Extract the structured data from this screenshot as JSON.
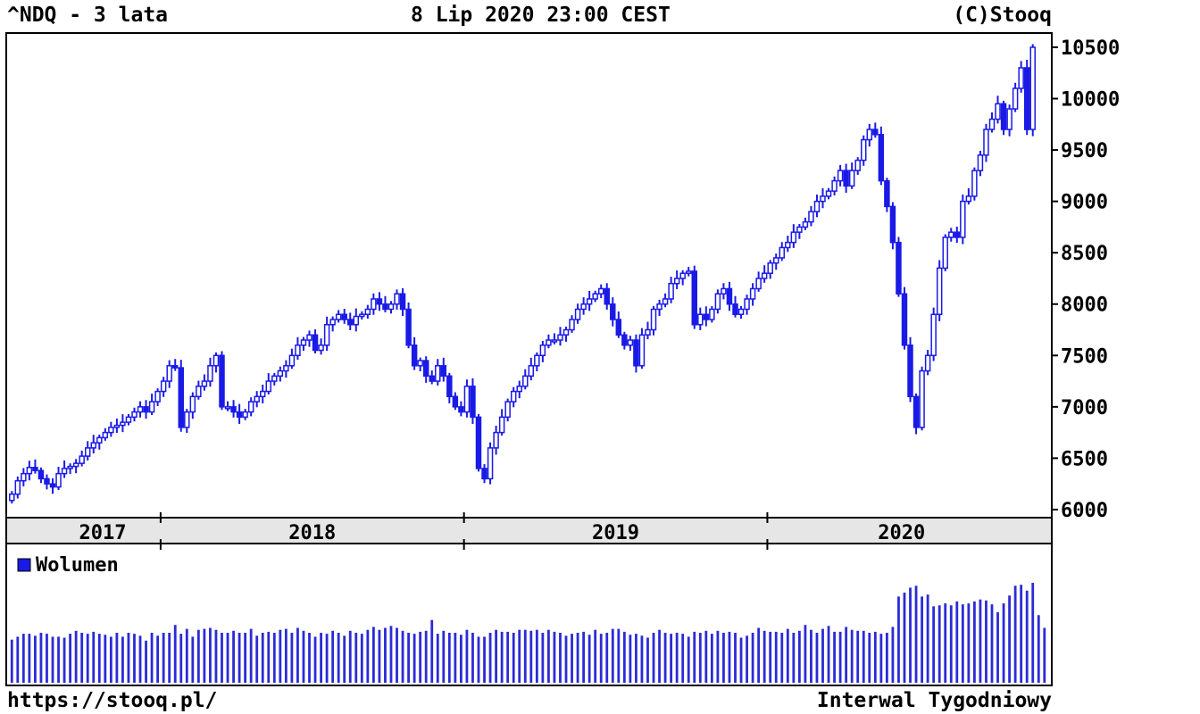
{
  "header": {
    "symbol_title": "^NDQ - 3 lata",
    "timestamp": "8 Lip 2020 23:00 CEST",
    "copyright": "(C)Stooq"
  },
  "footer": {
    "url": "https://stooq.pl/",
    "interval": "Interwal Tygodniowy"
  },
  "colors": {
    "candle": "#1a1ae6",
    "volume": "#2b2bd6",
    "axis_band": "#e6e6e6"
  },
  "chart_data": [
    {
      "type": "candlestick",
      "title": "^NDQ - 3 lata",
      "y_ticks": [
        6000,
        6500,
        7000,
        7500,
        8000,
        8500,
        9000,
        9500,
        10000,
        10500
      ],
      "ylim": [
        5930,
        10630
      ],
      "x_year_labels": [
        "2017",
        "2018",
        "2019",
        "2020"
      ],
      "x_year_boundaries": [
        "2018",
        "2019",
        "2020"
      ],
      "grid": false,
      "approx_weekly_close": [
        6150,
        6280,
        6350,
        6410,
        6380,
        6300,
        6250,
        6220,
        6350,
        6400,
        6420,
        6450,
        6520,
        6600,
        6650,
        6700,
        6750,
        6800,
        6820,
        6850,
        6900,
        6950,
        7000,
        6950,
        7050,
        7150,
        7250,
        7400,
        7380,
        6800,
        6950,
        7100,
        7200,
        7250,
        7400,
        7500,
        7000,
        7000,
        6950,
        6900,
        6950,
        7050,
        7100,
        7150,
        7250,
        7300,
        7350,
        7400,
        7500,
        7600,
        7650,
        7700,
        7550,
        7600,
        7800,
        7850,
        7900,
        7850,
        7800,
        7880,
        7900,
        7950,
        8050,
        8000,
        7950,
        8000,
        8100,
        7950,
        7600,
        7400,
        7450,
        7300,
        7250,
        7400,
        7300,
        7100,
        7000,
        6950,
        7200,
        6900,
        6400,
        6300,
        6600,
        6750,
        6900,
        7050,
        7150,
        7200,
        7300,
        7400,
        7500,
        7600,
        7650,
        7650,
        7700,
        7750,
        7850,
        7950,
        8000,
        8050,
        8100,
        8150,
        8000,
        7850,
        7700,
        7600,
        7650,
        7400,
        7700,
        7750,
        7950,
        8000,
        8050,
        8200,
        8250,
        8300,
        8320,
        7800,
        7900,
        7850,
        7950,
        8100,
        8150,
        8000,
        7900,
        7950,
        8050,
        8150,
        8250,
        8300,
        8400,
        8450,
        8550,
        8600,
        8700,
        8750,
        8800,
        8900,
        9000,
        9050,
        9100,
        9200,
        9300,
        9150,
        9300,
        9400,
        9600,
        9700,
        9650,
        9200,
        8950,
        8600,
        8100,
        7600,
        7100,
        6800,
        7350,
        7500,
        7900,
        8350,
        8650,
        8700,
        8650,
        9000,
        9050,
        9300,
        9450,
        9700,
        9800,
        9950,
        9700,
        9900,
        10100,
        10300,
        9700,
        10500
      ],
      "volume_series": {
        "name": "Wolumen",
        "approx_relative": [
          0.44,
          0.47,
          0.5,
          0.5,
          0.48,
          0.51,
          0.5,
          0.47,
          0.47,
          0.46,
          0.5,
          0.53,
          0.51,
          0.5,
          0.52,
          0.5,
          0.49,
          0.47,
          0.51,
          0.47,
          0.51,
          0.5,
          0.48,
          0.43,
          0.51,
          0.48,
          0.51,
          0.51,
          0.59,
          0.5,
          0.55,
          0.47,
          0.54,
          0.55,
          0.56,
          0.54,
          0.51,
          0.51,
          0.53,
          0.51,
          0.51,
          0.55,
          0.48,
          0.51,
          0.52,
          0.51,
          0.54,
          0.55,
          0.51,
          0.56,
          0.53,
          0.51,
          0.47,
          0.51,
          0.5,
          0.53,
          0.51,
          0.48,
          0.53,
          0.51,
          0.5,
          0.54,
          0.57,
          0.54,
          0.56,
          0.58,
          0.56,
          0.53,
          0.51,
          0.5,
          0.52,
          0.53,
          0.64,
          0.5,
          0.53,
          0.51,
          0.51,
          0.49,
          0.54,
          0.51,
          0.47,
          0.47,
          0.51,
          0.54,
          0.52,
          0.52,
          0.51,
          0.54,
          0.54,
          0.53,
          0.54,
          0.51,
          0.54,
          0.52,
          0.51,
          0.48,
          0.5,
          0.51,
          0.52,
          0.49,
          0.54,
          0.5,
          0.51,
          0.55,
          0.55,
          0.52,
          0.49,
          0.5,
          0.48,
          0.46,
          0.51,
          0.54,
          0.51,
          0.5,
          0.51,
          0.5,
          0.47,
          0.52,
          0.51,
          0.53,
          0.5,
          0.53,
          0.51,
          0.52,
          0.51,
          0.46,
          0.48,
          0.51,
          0.56,
          0.53,
          0.52,
          0.52,
          0.51,
          0.55,
          0.51,
          0.53,
          0.59,
          0.54,
          0.51,
          0.55,
          0.58,
          0.52,
          0.52,
          0.57,
          0.54,
          0.53,
          0.53,
          0.51,
          0.52,
          0.5,
          0.51,
          0.57,
          0.88,
          0.92,
          0.97,
          0.99,
          0.88,
          0.9,
          0.78,
          0.79,
          0.81,
          0.79,
          0.83,
          0.8,
          0.81,
          0.83,
          0.85,
          0.84,
          0.8,
          0.72,
          0.81,
          0.89,
          0.99,
          1.0,
          0.94,
          1.02,
          0.69,
          0.56
        ]
      }
    }
  ]
}
